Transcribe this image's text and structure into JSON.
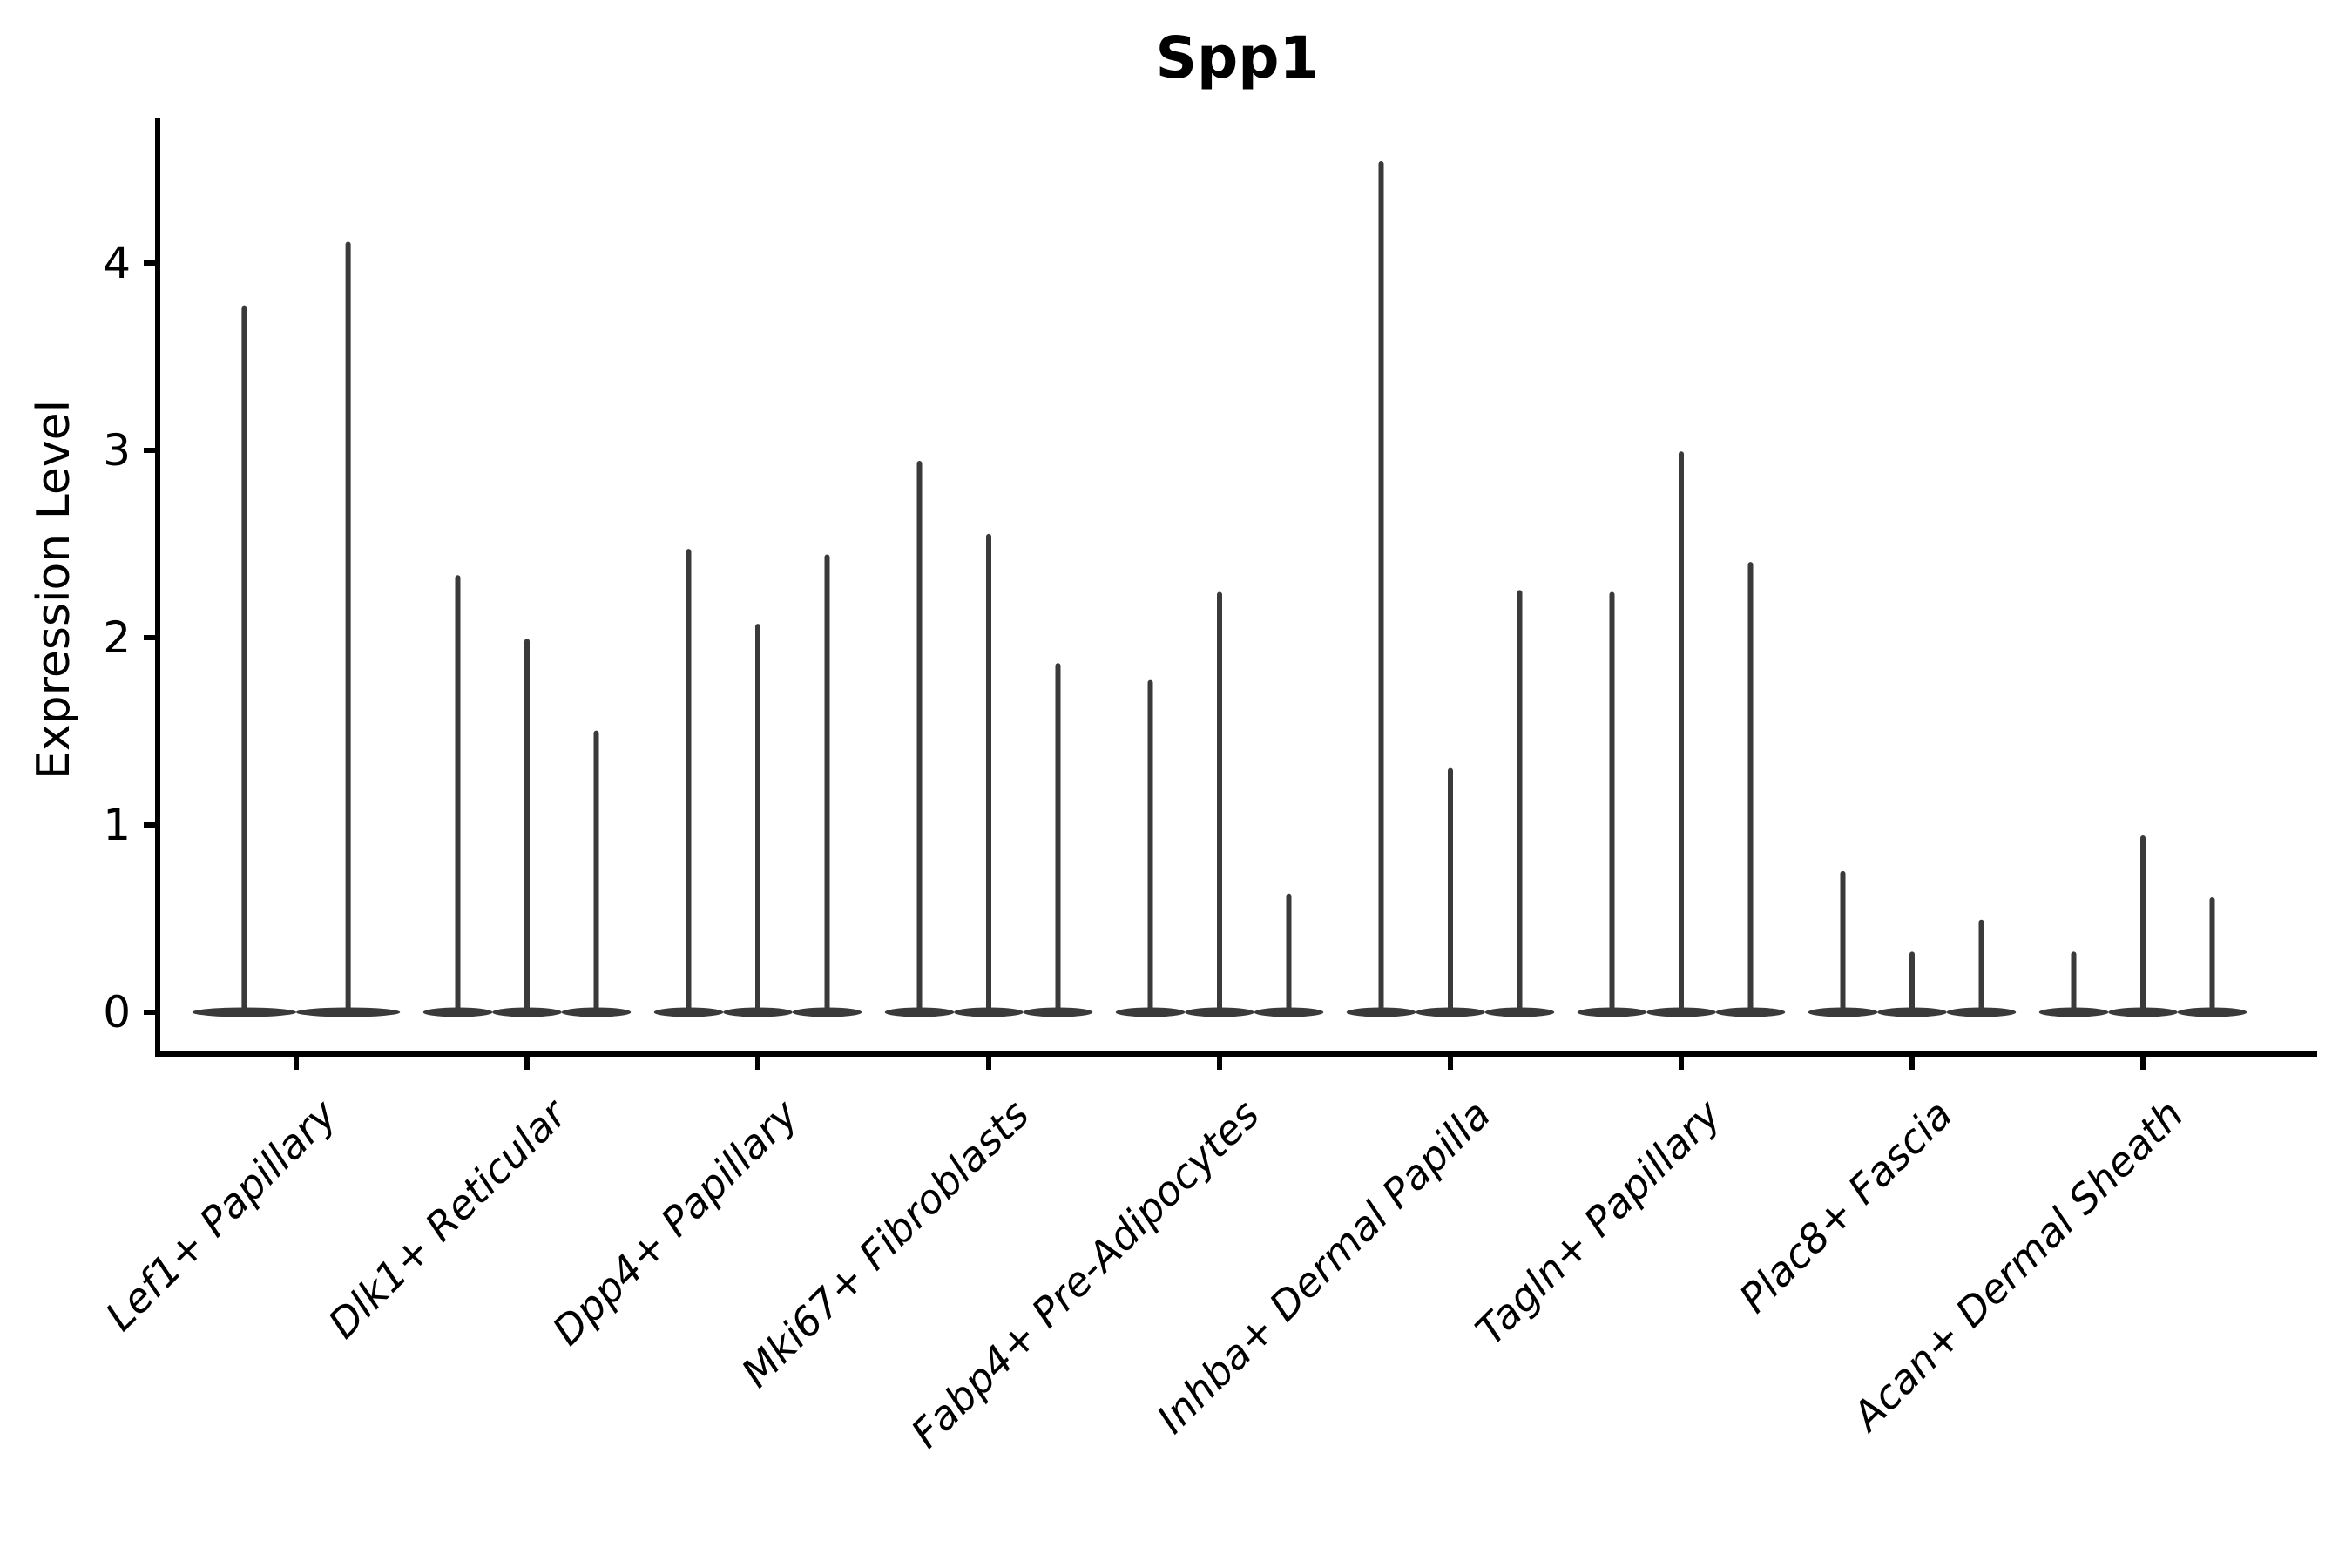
{
  "chart_data": {
    "type": "violin",
    "title": "Spp1",
    "ylabel": "Expression Level",
    "xlabel": "",
    "yticks": [
      0,
      1,
      2,
      3,
      4
    ],
    "ylim": [
      -0.23,
      4.78
    ],
    "grid": false,
    "legend": null,
    "baseline_value": 0,
    "orientation": "vertical",
    "x_tick_rotation_deg": 45,
    "groups": [
      {
        "label": "Lef1+ Papillary",
        "violin_peaks": [
          3.76,
          4.1
        ]
      },
      {
        "label": "Dlk1+ Reticular",
        "violin_peaks": [
          2.32,
          1.98,
          1.49
        ]
      },
      {
        "label": "Dpp4+ Papillary",
        "violin_peaks": [
          2.46,
          2.06,
          2.43
        ]
      },
      {
        "label": "Mki67+ Fibroblasts",
        "violin_peaks": [
          2.93,
          2.54,
          1.85
        ]
      },
      {
        "label": "Fabp4+ Pre-Adipocytes",
        "violin_peaks": [
          1.76,
          2.23,
          0.62
        ]
      },
      {
        "label": "Inhba+ Dermal Papilla",
        "violin_peaks": [
          4.53,
          1.29,
          2.24
        ]
      },
      {
        "label": "Tagln+ Papillary",
        "violin_peaks": [
          2.23,
          2.98,
          2.39
        ]
      },
      {
        "label": "Plac8+ Fascia",
        "violin_peaks": [
          0.74,
          0.31,
          0.48
        ]
      },
      {
        "label": "Acan+ Dermal Sheath",
        "violin_peaks": [
          0.31,
          0.93,
          0.6
        ]
      }
    ],
    "colors": {
      "violin": "#3a3a3a",
      "axis": "#000000",
      "text": "#000000",
      "background": "#ffffff"
    }
  }
}
